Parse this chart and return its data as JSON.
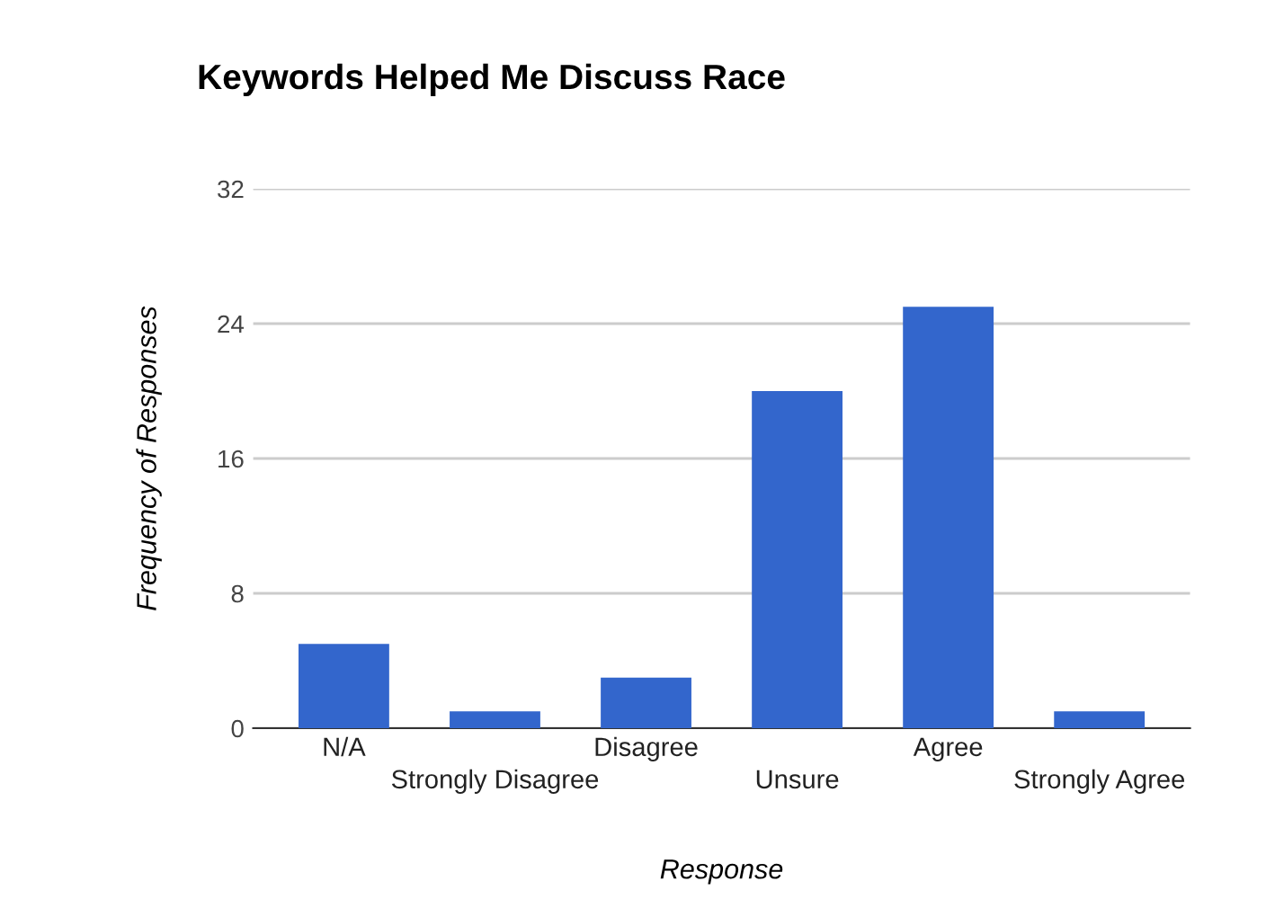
{
  "chart_data": {
    "type": "bar",
    "title": "Keywords Helped Me Discuss Race",
    "xlabel": "Response",
    "ylabel": "Frequency of Responses",
    "categories": [
      "N/A",
      "Strongly Disagree",
      "Disagree",
      "Unsure",
      "Agree",
      "Strongly Agree"
    ],
    "values": [
      5,
      1,
      3,
      20,
      25,
      1
    ],
    "color": "#3366cc",
    "ylim": [
      0,
      32
    ],
    "yticks": [
      0,
      8,
      16,
      24,
      32
    ],
    "grid": "y"
  }
}
